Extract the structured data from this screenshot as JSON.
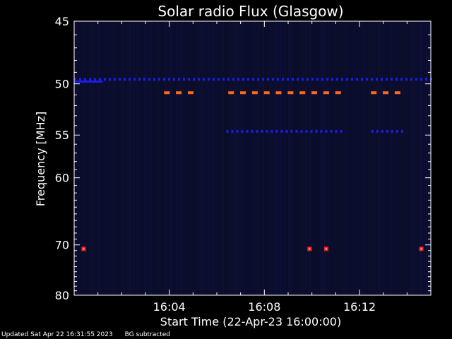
{
  "chart_data": {
    "type": "heatmap",
    "title": "Solar radio Flux (Glasgow)",
    "xlabel": "Start Time (22-Apr-23 16:00:00)",
    "ylabel": "Frequency [MHz]",
    "x_range_minutes": [
      0,
      15
    ],
    "ylim": [
      45,
      80
    ],
    "y_ticks": [
      45,
      50,
      55,
      60,
      70,
      80
    ],
    "x_ticks": [
      {
        "minute": 4,
        "label": "16:04"
      },
      {
        "minute": 8,
        "label": "16:08"
      },
      {
        "minute": 12,
        "label": "16:12"
      }
    ],
    "background_color": "#0a0c2a",
    "band_color": "#1c1ce6",
    "burst_color": "#ff6a1a",
    "hotspot_color": "#ff2020",
    "bands": [
      {
        "freq": 49.6,
        "minute_start": 0,
        "minute_end": 15,
        "style": "dashed"
      },
      {
        "freq": 49.8,
        "minute_start": 0,
        "minute_end": 1.2,
        "style": "solid"
      },
      {
        "freq": 54.6,
        "minute_start": 6.4,
        "minute_end": 11.2,
        "style": "dashed"
      },
      {
        "freq": 54.6,
        "minute_start": 12.5,
        "minute_end": 13.8,
        "style": "dashed"
      }
    ],
    "bursts": [
      {
        "freq": 50.8,
        "minute": 3.9
      },
      {
        "freq": 50.8,
        "minute": 4.4
      },
      {
        "freq": 50.8,
        "minute": 4.9
      },
      {
        "freq": 50.8,
        "minute": 6.6
      },
      {
        "freq": 50.8,
        "minute": 7.1
      },
      {
        "freq": 50.8,
        "minute": 7.6
      },
      {
        "freq": 50.8,
        "minute": 8.1
      },
      {
        "freq": 50.8,
        "minute": 8.6
      },
      {
        "freq": 50.8,
        "minute": 9.1
      },
      {
        "freq": 50.8,
        "minute": 9.6
      },
      {
        "freq": 50.8,
        "minute": 10.1
      },
      {
        "freq": 50.8,
        "minute": 10.6
      },
      {
        "freq": 50.8,
        "minute": 11.1
      },
      {
        "freq": 50.8,
        "minute": 12.6
      },
      {
        "freq": 50.8,
        "minute": 13.1
      },
      {
        "freq": 50.8,
        "minute": 13.6
      }
    ],
    "hotspots": [
      {
        "freq": 70.7,
        "minute": 0.4
      },
      {
        "freq": 70.7,
        "minute": 9.9
      },
      {
        "freq": 70.7,
        "minute": 10.6
      },
      {
        "freq": 70.7,
        "minute": 14.6
      }
    ]
  },
  "footer": {
    "updated": "Updated Sat Apr 22 16:31:55 2023",
    "note": "BG subtracted"
  }
}
